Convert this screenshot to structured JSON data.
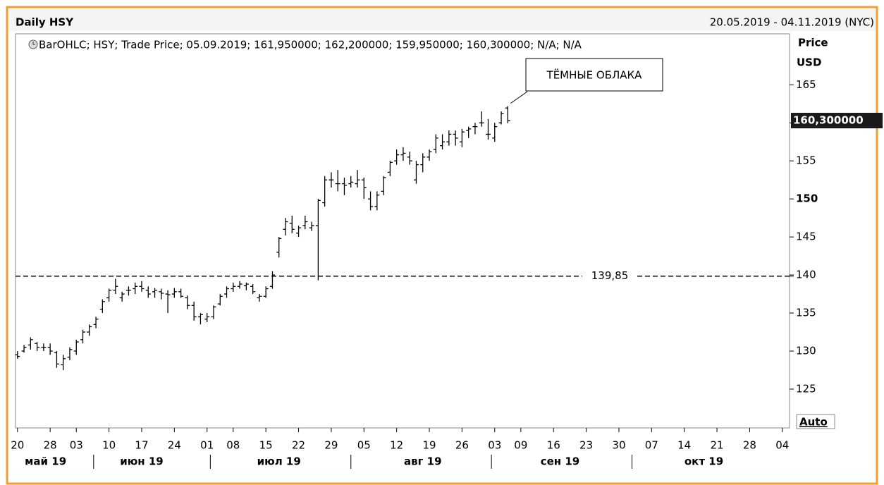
{
  "chart_data": {
    "type": "ohlc",
    "title": "Daily HSY",
    "date_range": "20.05.2019 - 04.11.2019 (NYC)",
    "legend_text": "BarOHLC; HSY; Trade Price; 05.09.2019; 161,950000; 162,200000; 159,950000; 160,300000; N/A; N/A",
    "y_axis_label": "Price",
    "y_axis_unit": "USD",
    "auto_button": "Auto",
    "annotation": "ТЁМНЫЕ ОБЛАКА",
    "hline": {
      "value": 139.85,
      "label": "139,85"
    },
    "last_price": {
      "value": 160.3,
      "label": "160,300000"
    },
    "color": "#000000",
    "ylim": [
      119.9,
      171.7
    ],
    "yticks": [
      125,
      130,
      135,
      140,
      145,
      150,
      155,
      160,
      165
    ],
    "xlim": [
      -0.3,
      118.1
    ],
    "xticks": [
      {
        "value": 0,
        "label": "20"
      },
      {
        "value": 5,
        "label": "28"
      },
      {
        "value": 9,
        "label": "03"
      },
      {
        "value": 14,
        "label": "10"
      },
      {
        "value": 19,
        "label": "17"
      },
      {
        "value": 24,
        "label": "24"
      },
      {
        "value": 29,
        "label": "01"
      },
      {
        "value": 33,
        "label": "08"
      },
      {
        "value": 38,
        "label": "15"
      },
      {
        "value": 43,
        "label": "22"
      },
      {
        "value": 48,
        "label": "29"
      },
      {
        "value": 53,
        "label": "05"
      },
      {
        "value": 58,
        "label": "12"
      },
      {
        "value": 63,
        "label": "19"
      },
      {
        "value": 68,
        "label": "26"
      },
      {
        "value": 73,
        "label": "03"
      },
      {
        "value": 77,
        "label": "09"
      },
      {
        "value": 82,
        "label": "16"
      },
      {
        "value": 87,
        "label": "23"
      },
      {
        "value": 92,
        "label": "30"
      },
      {
        "value": 97,
        "label": "07"
      },
      {
        "value": 102,
        "label": "14"
      },
      {
        "value": 107,
        "label": "21"
      },
      {
        "value": 112,
        "label": "28"
      },
      {
        "value": 117,
        "label": "04"
      }
    ],
    "month_labels": [
      {
        "value": 4.3,
        "label": "май 19"
      },
      {
        "value": 19,
        "label": "июн 19"
      },
      {
        "value": 40,
        "label": "июл 19"
      },
      {
        "value": 62,
        "label": "авг 19"
      },
      {
        "value": 83,
        "label": "сен 19"
      },
      {
        "value": 105,
        "label": "окт 19"
      }
    ],
    "x": [
      0,
      1,
      2,
      3,
      4,
      5,
      6,
      7,
      8,
      9,
      10,
      11,
      12,
      13,
      14,
      15,
      16,
      17,
      18,
      19,
      20,
      21,
      22,
      23,
      24,
      25,
      26,
      27,
      28,
      29,
      30,
      31,
      32,
      33,
      34,
      35,
      36,
      37,
      38,
      39,
      40,
      41,
      42,
      43,
      44,
      45,
      46,
      47,
      48,
      49,
      50,
      51,
      52,
      53,
      54,
      55,
      56,
      57,
      58,
      59,
      60,
      61,
      62,
      63,
      64,
      65,
      66,
      67,
      68,
      69,
      70,
      71,
      72,
      73,
      74,
      75
    ],
    "open": [
      129.5,
      130,
      130.8,
      131,
      130.5,
      130.5,
      129.8,
      128.2,
      129.2,
      130,
      131.5,
      132.5,
      133.5,
      135.5,
      137,
      138,
      137,
      138,
      138.2,
      138.5,
      138,
      137.8,
      137.8,
      137.5,
      137.5,
      137.8,
      137,
      136,
      134.5,
      134.2,
      134.5,
      136.2,
      137.5,
      138.2,
      138.5,
      138.6,
      138.5,
      137,
      137.2,
      138.5,
      143,
      146,
      146.8,
      145.5,
      146.5,
      146.2,
      146.5,
      149.5,
      152.5,
      152,
      152,
      152,
      152,
      152.5,
      150,
      149,
      151,
      153.5,
      155,
      155.8,
      155.5,
      152.5,
      154.5,
      155.5,
      156.5,
      157,
      157.5,
      158.5,
      157.5,
      159,
      159.5,
      160,
      158.5,
      158,
      160,
      161.95
    ],
    "high": [
      130,
      130.8,
      131.8,
      131.2,
      131,
      131,
      130,
      129.5,
      130.5,
      131.5,
      132.8,
      133.5,
      134.5,
      136.8,
      138.2,
      139.5,
      137.8,
      138.5,
      139,
      139.2,
      138.5,
      138.3,
      138.2,
      138,
      138.3,
      138.2,
      137.3,
      136.5,
      135,
      135,
      136,
      137.5,
      138.5,
      139,
      139.2,
      139,
      138.8,
      137.5,
      138.5,
      140.5,
      145,
      147.5,
      147.8,
      146.5,
      147.8,
      147,
      150,
      153,
      153.5,
      153.8,
      152.8,
      153,
      153.8,
      152.8,
      151,
      151,
      153,
      155,
      156.5,
      156.8,
      156.2,
      155,
      156,
      156.5,
      158.5,
      158.5,
      159,
      159,
      159.2,
      159.5,
      160,
      161.5,
      160.5,
      160,
      161.5,
      162.2
    ],
    "low": [
      129,
      129.8,
      130.2,
      130,
      130,
      129.5,
      127.8,
      127.5,
      128.8,
      129.5,
      131,
      132,
      133,
      135,
      136.5,
      137.5,
      136.5,
      137.3,
      137.5,
      137.8,
      137,
      137,
      136.8,
      135,
      137,
      137,
      135.5,
      134,
      133.5,
      133.8,
      134.2,
      136,
      137,
      137.8,
      138.2,
      138,
      137.5,
      136.5,
      137,
      138.2,
      142.3,
      145.2,
      145.5,
      145,
      146,
      145.8,
      139.3,
      149,
      151.5,
      151,
      150.5,
      151.5,
      151.5,
      150,
      148.5,
      148.5,
      150.5,
      153,
      154.5,
      155,
      154.5,
      152,
      153.5,
      155,
      156,
      156.5,
      157,
      157,
      156.8,
      158,
      158.5,
      159.5,
      157.8,
      157.5,
      159.8,
      159.95
    ],
    "close": [
      129.3,
      130.5,
      131.5,
      130.5,
      130.5,
      130,
      128.3,
      129,
      130.2,
      131.2,
      132.5,
      133.2,
      134.2,
      136.5,
      138,
      138.5,
      137.5,
      138,
      138.5,
      138.2,
      137.5,
      138,
      137.6,
      137.4,
      137.8,
      137.2,
      136,
      134.5,
      134.8,
      134.5,
      135.8,
      137.2,
      138.2,
      138.5,
      138.8,
      138.8,
      137.8,
      137.2,
      138.2,
      140,
      144.8,
      147,
      146,
      146.2,
      147,
      146.5,
      149.8,
      152.5,
      152.5,
      152,
      151.8,
      152.2,
      152.5,
      151.5,
      149,
      150.5,
      152.8,
      154.8,
      155.8,
      156,
      155,
      154.5,
      155.5,
      156.2,
      158,
      157.5,
      158.5,
      158,
      158.8,
      159.2,
      159.5,
      160,
      158.5,
      159.5,
      161.2,
      160.3
    ]
  }
}
